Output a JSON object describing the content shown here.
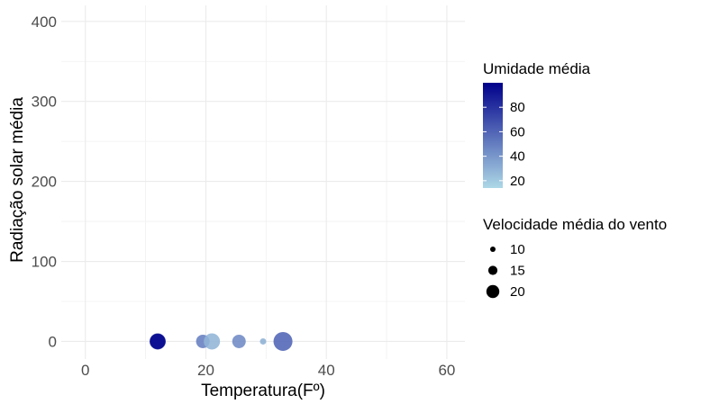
{
  "chart_data": {
    "type": "scatter",
    "xlabel": "Temperatura(Fº)",
    "ylabel": "Radiação solar média",
    "xlim": [
      -4,
      63
    ],
    "ylim": [
      -22,
      420
    ],
    "x_ticks": [
      0,
      20,
      40,
      60
    ],
    "y_ticks": [
      0,
      100,
      200,
      300,
      400
    ],
    "grid": true,
    "points": [
      {
        "x": 12,
        "y": 0,
        "size": 18,
        "color": 80
      },
      {
        "x": 12,
        "y": 0,
        "size": 17,
        "color": 97
      },
      {
        "x": 19.5,
        "y": 0,
        "size": 15,
        "color": 50
      },
      {
        "x": 21,
        "y": 0,
        "size": 18,
        "color": 28
      },
      {
        "x": 25.5,
        "y": 0,
        "size": 15,
        "color": 45
      },
      {
        "x": 29.5,
        "y": 0,
        "size": 7,
        "color": 30
      },
      {
        "x": 32.8,
        "y": 0,
        "size": 21,
        "color": 60
      }
    ],
    "legend": {
      "placement": "right",
      "color": {
        "title": "Umidade média",
        "min": 14,
        "max": 100,
        "labels": [
          "80",
          "60",
          "40",
          "20"
        ],
        "values": [
          80,
          60,
          40,
          20
        ],
        "low_color": "#add8e6",
        "high_color": "#00008b"
      },
      "size": {
        "title": "Velocidade média do vento",
        "labels": [
          "10",
          "15",
          "20"
        ],
        "values": [
          10,
          15,
          20
        ]
      }
    }
  }
}
